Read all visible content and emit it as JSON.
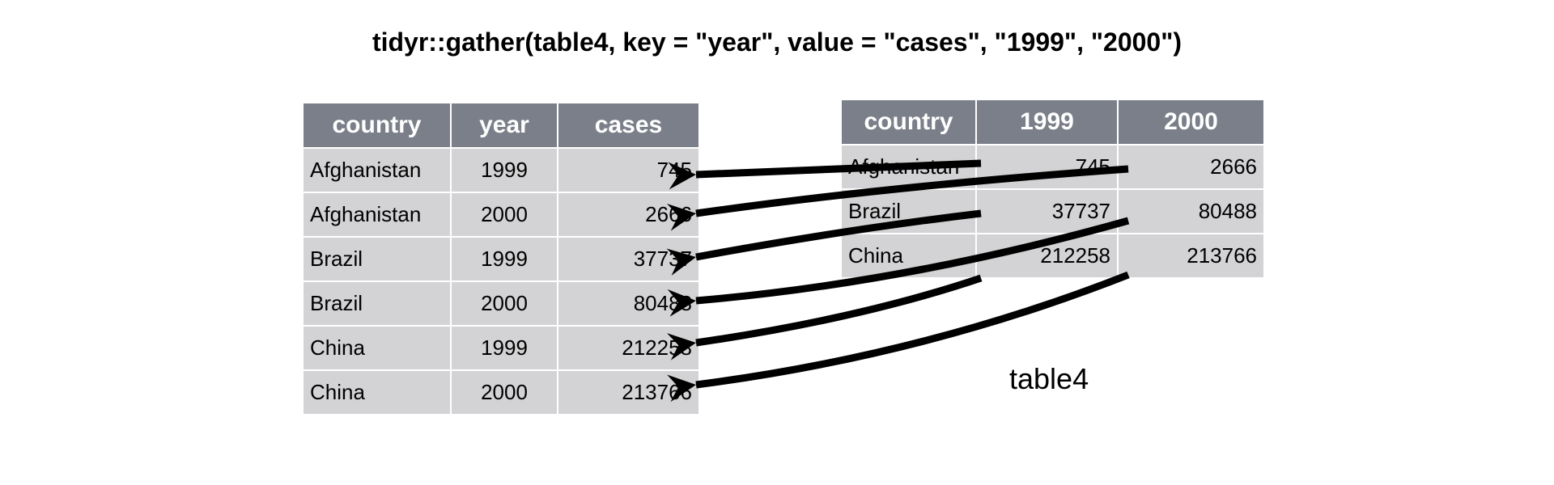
{
  "title": "tidyr::gather(table4, key = \"year\", value = \"cases\", \"1999\", \"2000\")",
  "long_table": {
    "headers": [
      "country",
      "year",
      "cases"
    ],
    "rows": [
      [
        "Afghanistan",
        "1999",
        "745"
      ],
      [
        "Afghanistan",
        "2000",
        "2666"
      ],
      [
        "Brazil",
        "1999",
        "37737"
      ],
      [
        "Brazil",
        "2000",
        "80488"
      ],
      [
        "China",
        "1999",
        "212258"
      ],
      [
        "China",
        "2000",
        "213766"
      ]
    ]
  },
  "wide_table": {
    "label": "table4",
    "headers": [
      "country",
      "1999",
      "2000"
    ],
    "rows": [
      [
        "Afghanistan",
        "745",
        "2666"
      ],
      [
        "Brazil",
        "37737",
        "80488"
      ],
      [
        "China",
        "212258",
        "213766"
      ]
    ]
  },
  "colors": {
    "header_bg": "#7a7f89",
    "cell_bg": "#d3d3d5",
    "arrow": "#000000"
  }
}
